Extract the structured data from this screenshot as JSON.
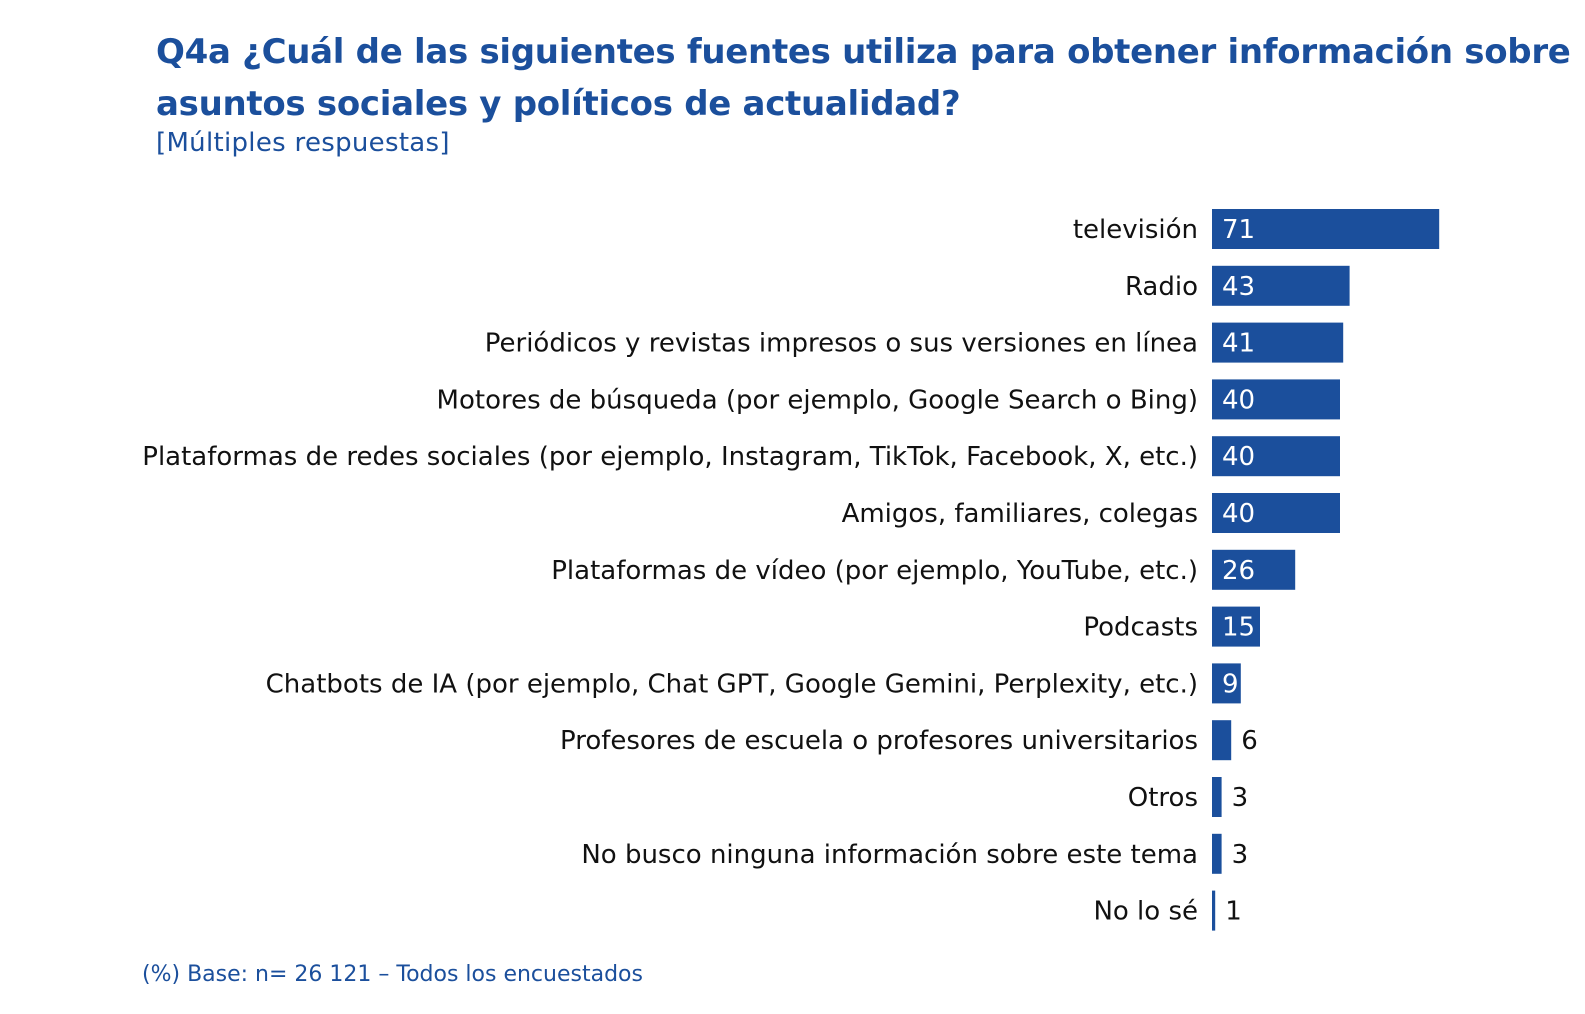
{
  "chart_data": {
    "type": "bar",
    "orientation": "horizontal",
    "title": "Q4a ¿Cuál de las siguientes fuentes utiliza para obtener información sobre asuntos sociales y políticos de actualidad?",
    "subtitle": "[Múltiples respuestas]",
    "footnote": "(%) Base: n= 26 121 – Todos los encuestados",
    "categories": [
      "televisión",
      "Radio",
      "Periódicos y revistas impresos o sus versiones en línea",
      "Motores de búsqueda (por ejemplo, Google Search o Bing)",
      "Plataformas de redes sociales (por ejemplo, Instagram, TikTok, Facebook, X, etc.)",
      "Amigos, familiares, colegas",
      "Plataformas de vídeo (por ejemplo, YouTube, etc.)",
      "Podcasts",
      "Chatbots de IA (por ejemplo, Chat GPT, Google Gemini, Perplexity, etc.)",
      "Profesores de escuela o profesores universitarios",
      "Otros",
      "No busco ninguna información sobre este tema",
      "No lo sé"
    ],
    "values": [
      71,
      43,
      41,
      40,
      40,
      40,
      26,
      15,
      9,
      6,
      3,
      3,
      1
    ],
    "unit": "%",
    "xlim": [
      0,
      100
    ],
    "xlabel": "",
    "ylabel": "",
    "grid": false,
    "legend": "none",
    "bar_color": "#1b4f9c"
  }
}
